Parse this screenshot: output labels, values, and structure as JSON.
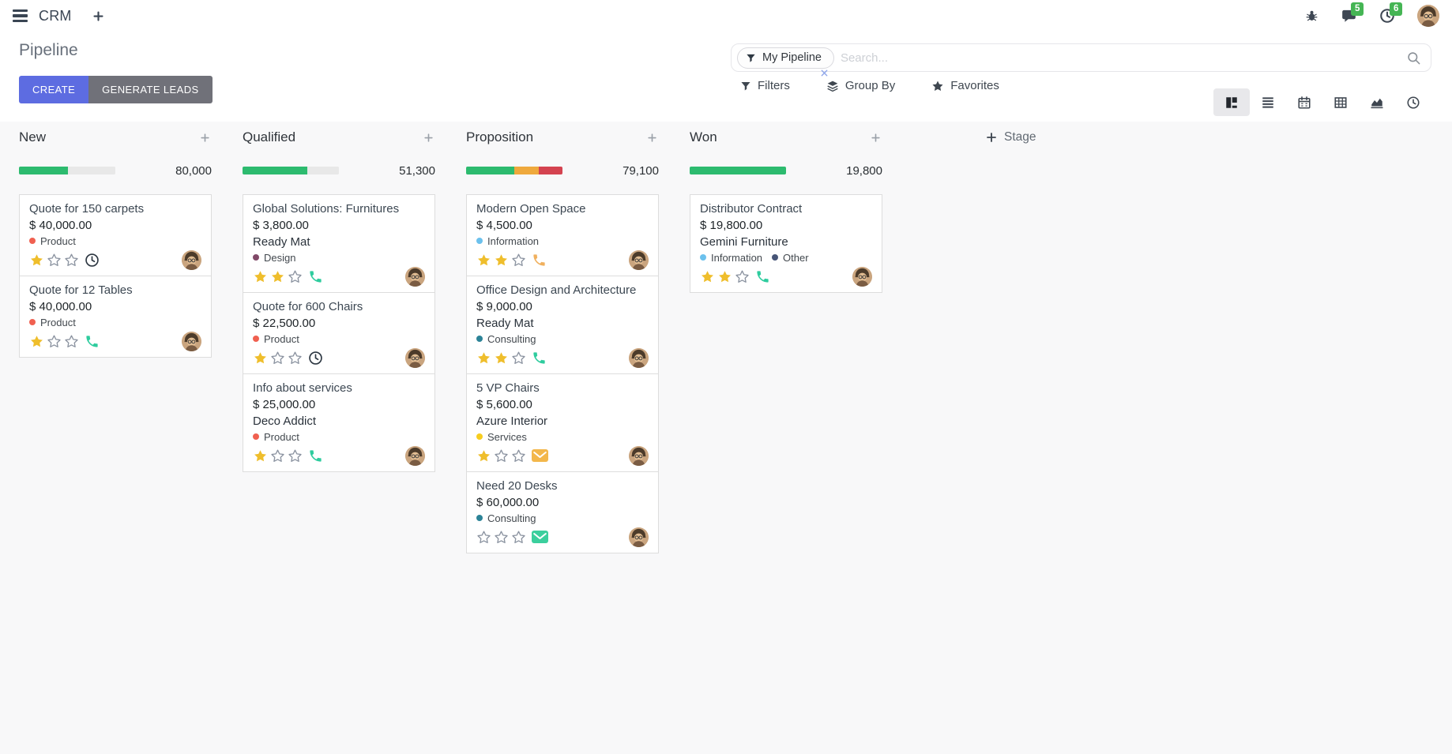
{
  "navbar": {
    "app_name": "CRM",
    "messages_badge": "5",
    "activities_badge": "6",
    "icons": [
      "menu-icon",
      "plus-icon",
      "bug-icon",
      "messages-icon",
      "activities-icon",
      "user-avatar"
    ]
  },
  "control_panel": {
    "title": "Pipeline",
    "create_label": "CREATE",
    "generate_leads_label": "GENERATE LEADS",
    "search": {
      "facet": "My Pipeline",
      "placeholder": "Search..."
    },
    "filters_label": "Filters",
    "group_by_label": "Group By",
    "favorites_label": "Favorites",
    "view_switcher": [
      "kanban",
      "list",
      "calendar",
      "pivot",
      "graph",
      "activity"
    ],
    "active_view": "kanban"
  },
  "add_stage_label": "Stage",
  "colors": {
    "create_button": "#5d6ce1",
    "generate_button": "#707179",
    "badge_green": "#45b554",
    "progress_green": "#2dbb6f",
    "progress_orange": "#efa93d",
    "progress_red": "#d44350",
    "progress_track": "#e8e8e8",
    "star_filled": "#efbe2c",
    "star_empty": "#8b93a0"
  },
  "columns": [
    {
      "name": "New",
      "count": "80,000",
      "progress": [
        {
          "color": "#2dbb6f",
          "pct": 51
        },
        {
          "color": "#e8e8e8",
          "pct": 49
        }
      ],
      "cards": [
        {
          "title": "Quote for 150 carpets",
          "amount": "$ 40,000.00",
          "tags": [
            {
              "label": "Product",
              "color": "#f06050"
            }
          ],
          "stars": 1,
          "activity": {
            "type": "clock",
            "color": "#2d3742"
          }
        },
        {
          "title": "Quote for 12 Tables",
          "amount": "$ 40,000.00",
          "tags": [
            {
              "label": "Product",
              "color": "#f06050"
            }
          ],
          "stars": 1,
          "activity": {
            "type": "phone",
            "color": "#2ecc9e"
          }
        }
      ]
    },
    {
      "name": "Qualified",
      "count": "51,300",
      "progress": [
        {
          "color": "#2dbb6f",
          "pct": 67
        },
        {
          "color": "#e8e8e8",
          "pct": 33
        }
      ],
      "cards": [
        {
          "title": "Global Solutions: Furnitures",
          "amount": "$ 3,800.00",
          "company": "Ready Mat",
          "tags": [
            {
              "label": "Design",
              "color": "#814968"
            }
          ],
          "stars": 2,
          "activity": {
            "type": "phone",
            "color": "#2ecc9e"
          }
        },
        {
          "title": "Quote for 600 Chairs",
          "amount": "$ 22,500.00",
          "tags": [
            {
              "label": "Product",
              "color": "#f06050"
            }
          ],
          "stars": 1,
          "activity": {
            "type": "clock",
            "color": "#2d3742"
          }
        },
        {
          "title": "Info about services",
          "amount": "$ 25,000.00",
          "company": "Deco Addict",
          "tags": [
            {
              "label": "Product",
              "color": "#f06050"
            }
          ],
          "stars": 1,
          "activity": {
            "type": "phone",
            "color": "#2ecc9e"
          }
        }
      ]
    },
    {
      "name": "Proposition",
      "count": "79,100",
      "progress": [
        {
          "color": "#2dbb6f",
          "pct": 50
        },
        {
          "color": "#efa93d",
          "pct": 25
        },
        {
          "color": "#d44350",
          "pct": 25
        }
      ],
      "cards": [
        {
          "title": "Modern Open Space",
          "amount": "$ 4,500.00",
          "tags": [
            {
              "label": "Information",
              "color": "#6cc1ed"
            }
          ],
          "stars": 2,
          "activity": {
            "type": "phone",
            "color": "#f0b05e"
          }
        },
        {
          "title": "Office Design and Architecture",
          "amount": "$ 9,000.00",
          "company": "Ready Mat",
          "tags": [
            {
              "label": "Consulting",
              "color": "#2c8397"
            }
          ],
          "stars": 2,
          "activity": {
            "type": "phone",
            "color": "#2ecc9e"
          }
        },
        {
          "title": "5 VP Chairs",
          "amount": "$ 5,600.00",
          "company": "Azure Interior",
          "tags": [
            {
              "label": "Services",
              "color": "#f7cd1f"
            }
          ],
          "stars": 1,
          "activity": {
            "type": "mail",
            "color": "#f3b74b"
          }
        },
        {
          "title": "Need 20 Desks",
          "amount": "$ 60,000.00",
          "tags": [
            {
              "label": "Consulting",
              "color": "#2c8397"
            }
          ],
          "stars": 0,
          "activity": {
            "type": "mail",
            "color": "#3bcf9d"
          }
        }
      ]
    },
    {
      "name": "Won",
      "count": "19,800",
      "progress": [
        {
          "color": "#2dbb6f",
          "pct": 100
        }
      ],
      "cards": [
        {
          "title": "Distributor Contract",
          "amount": "$ 19,800.00",
          "company": "Gemini Furniture",
          "tags": [
            {
              "label": "Information",
              "color": "#6cc1ed"
            },
            {
              "label": "Other",
              "color": "#475577"
            }
          ],
          "stars": 2,
          "activity": {
            "type": "phone",
            "color": "#2ecc9e"
          }
        }
      ]
    }
  ]
}
